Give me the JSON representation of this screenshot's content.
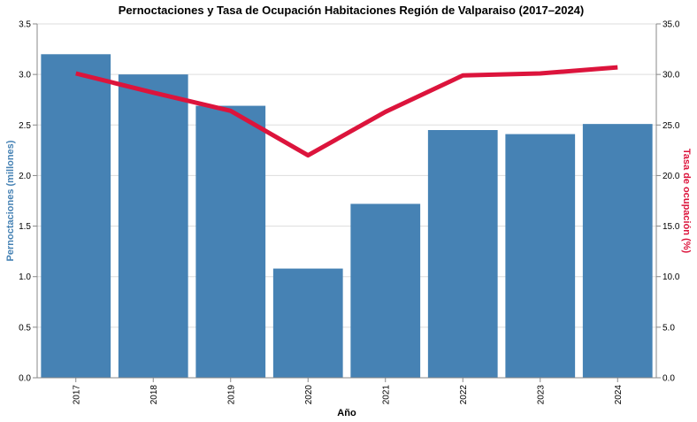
{
  "chart_data": {
    "type": "bar+line",
    "title": "Pernoctaciones y Tasa de Ocupación Habitaciones Región de Valparaiso (2017–2024)",
    "xlabel": "Año",
    "ylabel_left": "Pernoctaciones (millones)",
    "ylabel_right": "Tasa de ocupación (%)",
    "categories": [
      "2017",
      "2018",
      "2019",
      "2020",
      "2021",
      "2022",
      "2023",
      "2024"
    ],
    "series": [
      {
        "type": "bar",
        "axis": "left",
        "color": "#4682b4",
        "values": [
          3.2,
          3.0,
          2.69,
          1.08,
          1.72,
          2.45,
          2.41,
          2.51
        ]
      },
      {
        "type": "line",
        "axis": "right",
        "color": "#dc143c",
        "values": [
          30.1,
          28.2,
          26.4,
          22.0,
          26.3,
          29.9,
          30.1,
          30.7
        ]
      }
    ],
    "ylim_left": [
      0,
      3.5
    ],
    "ylim_right": [
      0,
      35
    ],
    "yticks_left": [
      "0.0",
      "0.5",
      "1.0",
      "1.5",
      "2.0",
      "2.5",
      "3.0",
      "3.5"
    ],
    "yticks_right": [
      "0.0",
      "5.0",
      "10.0",
      "15.0",
      "20.0",
      "25.0",
      "30.0",
      "35.0"
    ],
    "grid": true,
    "legend": "none"
  }
}
